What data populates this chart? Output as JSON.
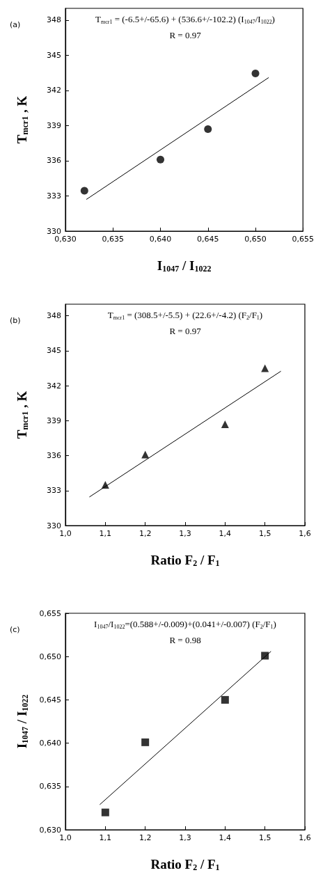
{
  "chart_data": [
    {
      "type": "scatter",
      "xlabel": "I$_{1047}$ / I$_{1022}$",
      "ylabel": "T$_{mcr1}$ , K",
      "grid": false,
      "annotations": [
        "(a)",
        "T$_{mcr1}$ = (-6.5+/-65.6) + (536.6+/-102.2) (I$_{1047}$/I$_{1022}$)",
        "R = 0.97"
      ],
      "xlim": [
        0.63,
        0.655
      ],
      "xticks": [
        {
          "value": 0.63,
          "label": "0,630"
        },
        {
          "value": 0.635,
          "label": "0,635"
        },
        {
          "value": 0.64,
          "label": "0,640"
        },
        {
          "value": 0.645,
          "label": "0,645"
        },
        {
          "value": 0.65,
          "label": "0,650"
        },
        {
          "value": 0.655,
          "label": "0,655"
        }
      ],
      "ylim": [
        330,
        349
      ],
      "yticks": [
        330,
        333,
        336,
        339,
        342,
        345,
        348
      ],
      "series": [
        {
          "marker": "circle",
          "color": "#000000",
          "x": [
            0.632,
            0.64,
            0.645,
            0.65
          ],
          "values": [
            333.45,
            336.1,
            338.7,
            343.45
          ]
        },
        {
          "type": "line",
          "marker": "none",
          "color": "#000000",
          "x": [
            0.6322,
            0.6514
          ],
          "values": [
            332.7,
            343.1
          ]
        }
      ]
    },
    {
      "type": "scatter",
      "xlabel": "Ratio F$_{2}$ / F$_{1}$",
      "ylabel": "T$_{mcr1}$ , K",
      "grid": false,
      "annotations": [
        "(b)",
        "T$_{mcr1}$ = (308.5+/-5.5) + (22.6+/-4.2) (F$_{2}$/F$_{1}$)",
        "R = 0.97"
      ],
      "xlim": [
        1.0,
        1.6
      ],
      "xticks": [
        {
          "value": 1.0,
          "label": "1,0"
        },
        {
          "value": 1.1,
          "label": "1,1"
        },
        {
          "value": 1.2,
          "label": "1,2"
        },
        {
          "value": 1.3,
          "label": "1,3"
        },
        {
          "value": 1.4,
          "label": "1,4"
        },
        {
          "value": 1.5,
          "label": "1,5"
        },
        {
          "value": 1.6,
          "label": "1,6"
        }
      ],
      "ylim": [
        330,
        349
      ],
      "yticks": [
        330,
        333,
        336,
        339,
        342,
        345,
        348
      ],
      "series": [
        {
          "marker": "triangle",
          "color": "#000000",
          "x": [
            1.1,
            1.2,
            1.4,
            1.5
          ],
          "values": [
            333.5,
            336.1,
            338.7,
            343.5
          ]
        },
        {
          "type": "line",
          "marker": "none",
          "color": "#000000",
          "x": [
            1.06,
            1.54
          ],
          "values": [
            332.45,
            343.25
          ]
        }
      ]
    },
    {
      "type": "scatter",
      "xlabel": "Ratio F$_{2}$ / F$_{1}$",
      "ylabel": "I$_{1047}$ / I$_{1022}$",
      "grid": false,
      "annotations": [
        "(c)",
        "I$_{1047}$/I$_{1022}$=(0.588+/-0.009)+(0.041+/-0.007) (F$_{2}$/F$_{1}$)",
        "R = 0.98"
      ],
      "xlim": [
        1.0,
        1.6
      ],
      "xticks": [
        {
          "value": 1.0,
          "label": "1,0"
        },
        {
          "value": 1.1,
          "label": "1,1"
        },
        {
          "value": 1.2,
          "label": "1,2"
        },
        {
          "value": 1.3,
          "label": "1,3"
        },
        {
          "value": 1.4,
          "label": "1,4"
        },
        {
          "value": 1.5,
          "label": "1,5"
        },
        {
          "value": 1.6,
          "label": "1,6"
        }
      ],
      "ylim": [
        0.63,
        0.655
      ],
      "yticks": [
        {
          "value": 0.63,
          "label": "0,630"
        },
        {
          "value": 0.635,
          "label": "0,635"
        },
        {
          "value": 0.64,
          "label": "0,640"
        },
        {
          "value": 0.645,
          "label": "0,645"
        },
        {
          "value": 0.65,
          "label": "0,650"
        },
        {
          "value": 0.655,
          "label": "0,655"
        }
      ],
      "series": [
        {
          "marker": "square",
          "color": "#000000",
          "x": [
            1.1,
            1.2,
            1.4,
            1.5
          ],
          "values": [
            0.632,
            0.6401,
            0.645,
            0.6501
          ]
        },
        {
          "type": "line",
          "marker": "none",
          "color": "#000000",
          "x": [
            1.086,
            1.515
          ],
          "values": [
            0.6329,
            0.6506
          ]
        }
      ]
    }
  ]
}
